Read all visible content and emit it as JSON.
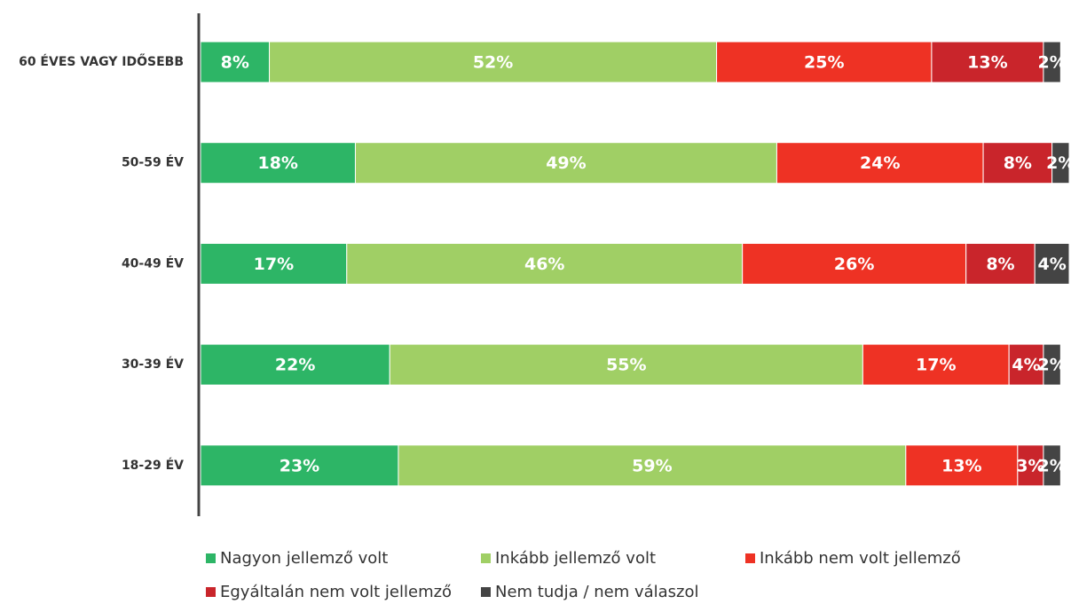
{
  "chart_data": {
    "type": "stacked-bar-horizontal",
    "categories": [
      "60 ÉVES VAGY IDŐSEBB",
      "50-59 ÉV",
      "40-49 ÉV",
      "30-39 ÉV",
      "18-29 ÉV"
    ],
    "xlim": [
      0,
      101
    ],
    "series": [
      {
        "name": "Nagyon jellemző volt",
        "color": "#2db566",
        "values": [
          8,
          18,
          17,
          22,
          23
        ],
        "value_labels": [
          "8%",
          "18%",
          "17%",
          "22%",
          "23%"
        ]
      },
      {
        "name": "Inkább jellemző volt",
        "color": "#a0cf65",
        "values": [
          52,
          49,
          46,
          55,
          59
        ],
        "value_labels": [
          "52%",
          "49%",
          "46%",
          "55%",
          "59%"
        ]
      },
      {
        "name": "Inkább nem volt jellemző",
        "color": "#ee3224",
        "values": [
          25,
          24,
          26,
          17,
          13
        ],
        "value_labels": [
          "25%",
          "24%",
          "26%",
          "17%",
          "13%"
        ]
      },
      {
        "name": "Egyáltalán nem volt jellemző",
        "color": "#c9252b",
        "values": [
          13,
          8,
          8,
          4,
          3
        ],
        "value_labels": [
          "13%",
          "8%",
          "8%",
          "4%",
          "3%"
        ]
      },
      {
        "name": "Nem tudja / nem válaszol",
        "color": "#444444",
        "values": [
          2,
          2,
          4,
          2,
          2
        ],
        "value_labels": [
          "2%",
          "2%",
          "4%",
          "2%",
          "2%"
        ]
      }
    ]
  }
}
